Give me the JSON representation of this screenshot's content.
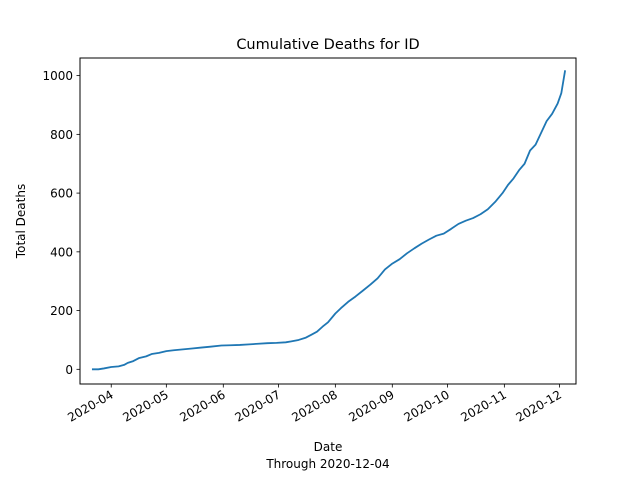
{
  "chart_data": {
    "type": "line",
    "title": "Cumulative Deaths for ID",
    "xlabel": "Date",
    "xlabel_sub": "Through 2020-12-04",
    "ylabel": "Total Deaths",
    "xlim": [
      "2020-03-15",
      "2020-12-10"
    ],
    "ylim": [
      -50,
      1060
    ],
    "x_ticks": [
      "2020-04",
      "2020-05",
      "2020-06",
      "2020-07",
      "2020-08",
      "2020-09",
      "2020-10",
      "2020-11",
      "2020-12"
    ],
    "y_ticks": [
      0,
      200,
      400,
      600,
      800,
      1000
    ],
    "line_color": "#1f77b4",
    "grid": false,
    "legend": false,
    "series": [
      {
        "points": [
          [
            "2020-03-22",
            0
          ],
          [
            "2020-03-25",
            0
          ],
          [
            "2020-03-28",
            3
          ],
          [
            "2020-04-01",
            8
          ],
          [
            "2020-04-05",
            10
          ],
          [
            "2020-04-08",
            15
          ],
          [
            "2020-04-10",
            22
          ],
          [
            "2020-04-13",
            28
          ],
          [
            "2020-04-16",
            38
          ],
          [
            "2020-04-20",
            44
          ],
          [
            "2020-04-23",
            52
          ],
          [
            "2020-04-27",
            56
          ],
          [
            "2020-05-01",
            62
          ],
          [
            "2020-05-05",
            65
          ],
          [
            "2020-05-10",
            68
          ],
          [
            "2020-05-15",
            71
          ],
          [
            "2020-05-20",
            74
          ],
          [
            "2020-05-25",
            77
          ],
          [
            "2020-05-31",
            81
          ],
          [
            "2020-06-05",
            82
          ],
          [
            "2020-06-10",
            83
          ],
          [
            "2020-06-15",
            85
          ],
          [
            "2020-06-20",
            87
          ],
          [
            "2020-06-25",
            89
          ],
          [
            "2020-06-30",
            90
          ],
          [
            "2020-07-05",
            92
          ],
          [
            "2020-07-08",
            95
          ],
          [
            "2020-07-12",
            100
          ],
          [
            "2020-07-16",
            108
          ],
          [
            "2020-07-19",
            118
          ],
          [
            "2020-07-22",
            128
          ],
          [
            "2020-07-25",
            145
          ],
          [
            "2020-07-28",
            160
          ],
          [
            "2020-08-01",
            190
          ],
          [
            "2020-08-04",
            208
          ],
          [
            "2020-08-08",
            230
          ],
          [
            "2020-08-12",
            248
          ],
          [
            "2020-08-16",
            268
          ],
          [
            "2020-08-20",
            288
          ],
          [
            "2020-08-24",
            310
          ],
          [
            "2020-08-28",
            340
          ],
          [
            "2020-09-01",
            360
          ],
          [
            "2020-09-05",
            375
          ],
          [
            "2020-09-09",
            395
          ],
          [
            "2020-09-13",
            412
          ],
          [
            "2020-09-17",
            428
          ],
          [
            "2020-09-21",
            442
          ],
          [
            "2020-09-25",
            455
          ],
          [
            "2020-09-29",
            462
          ],
          [
            "2020-10-03",
            478
          ],
          [
            "2020-10-07",
            495
          ],
          [
            "2020-10-11",
            506
          ],
          [
            "2020-10-15",
            515
          ],
          [
            "2020-10-19",
            528
          ],
          [
            "2020-10-23",
            545
          ],
          [
            "2020-10-27",
            570
          ],
          [
            "2020-10-31",
            600
          ],
          [
            "2020-11-03",
            628
          ],
          [
            "2020-11-06",
            650
          ],
          [
            "2020-11-09",
            678
          ],
          [
            "2020-11-12",
            700
          ],
          [
            "2020-11-15",
            745
          ],
          [
            "2020-11-18",
            765
          ],
          [
            "2020-11-21",
            805
          ],
          [
            "2020-11-24",
            845
          ],
          [
            "2020-11-27",
            870
          ],
          [
            "2020-11-30",
            905
          ],
          [
            "2020-12-02",
            940
          ],
          [
            "2020-12-04",
            1015
          ]
        ]
      }
    ]
  }
}
